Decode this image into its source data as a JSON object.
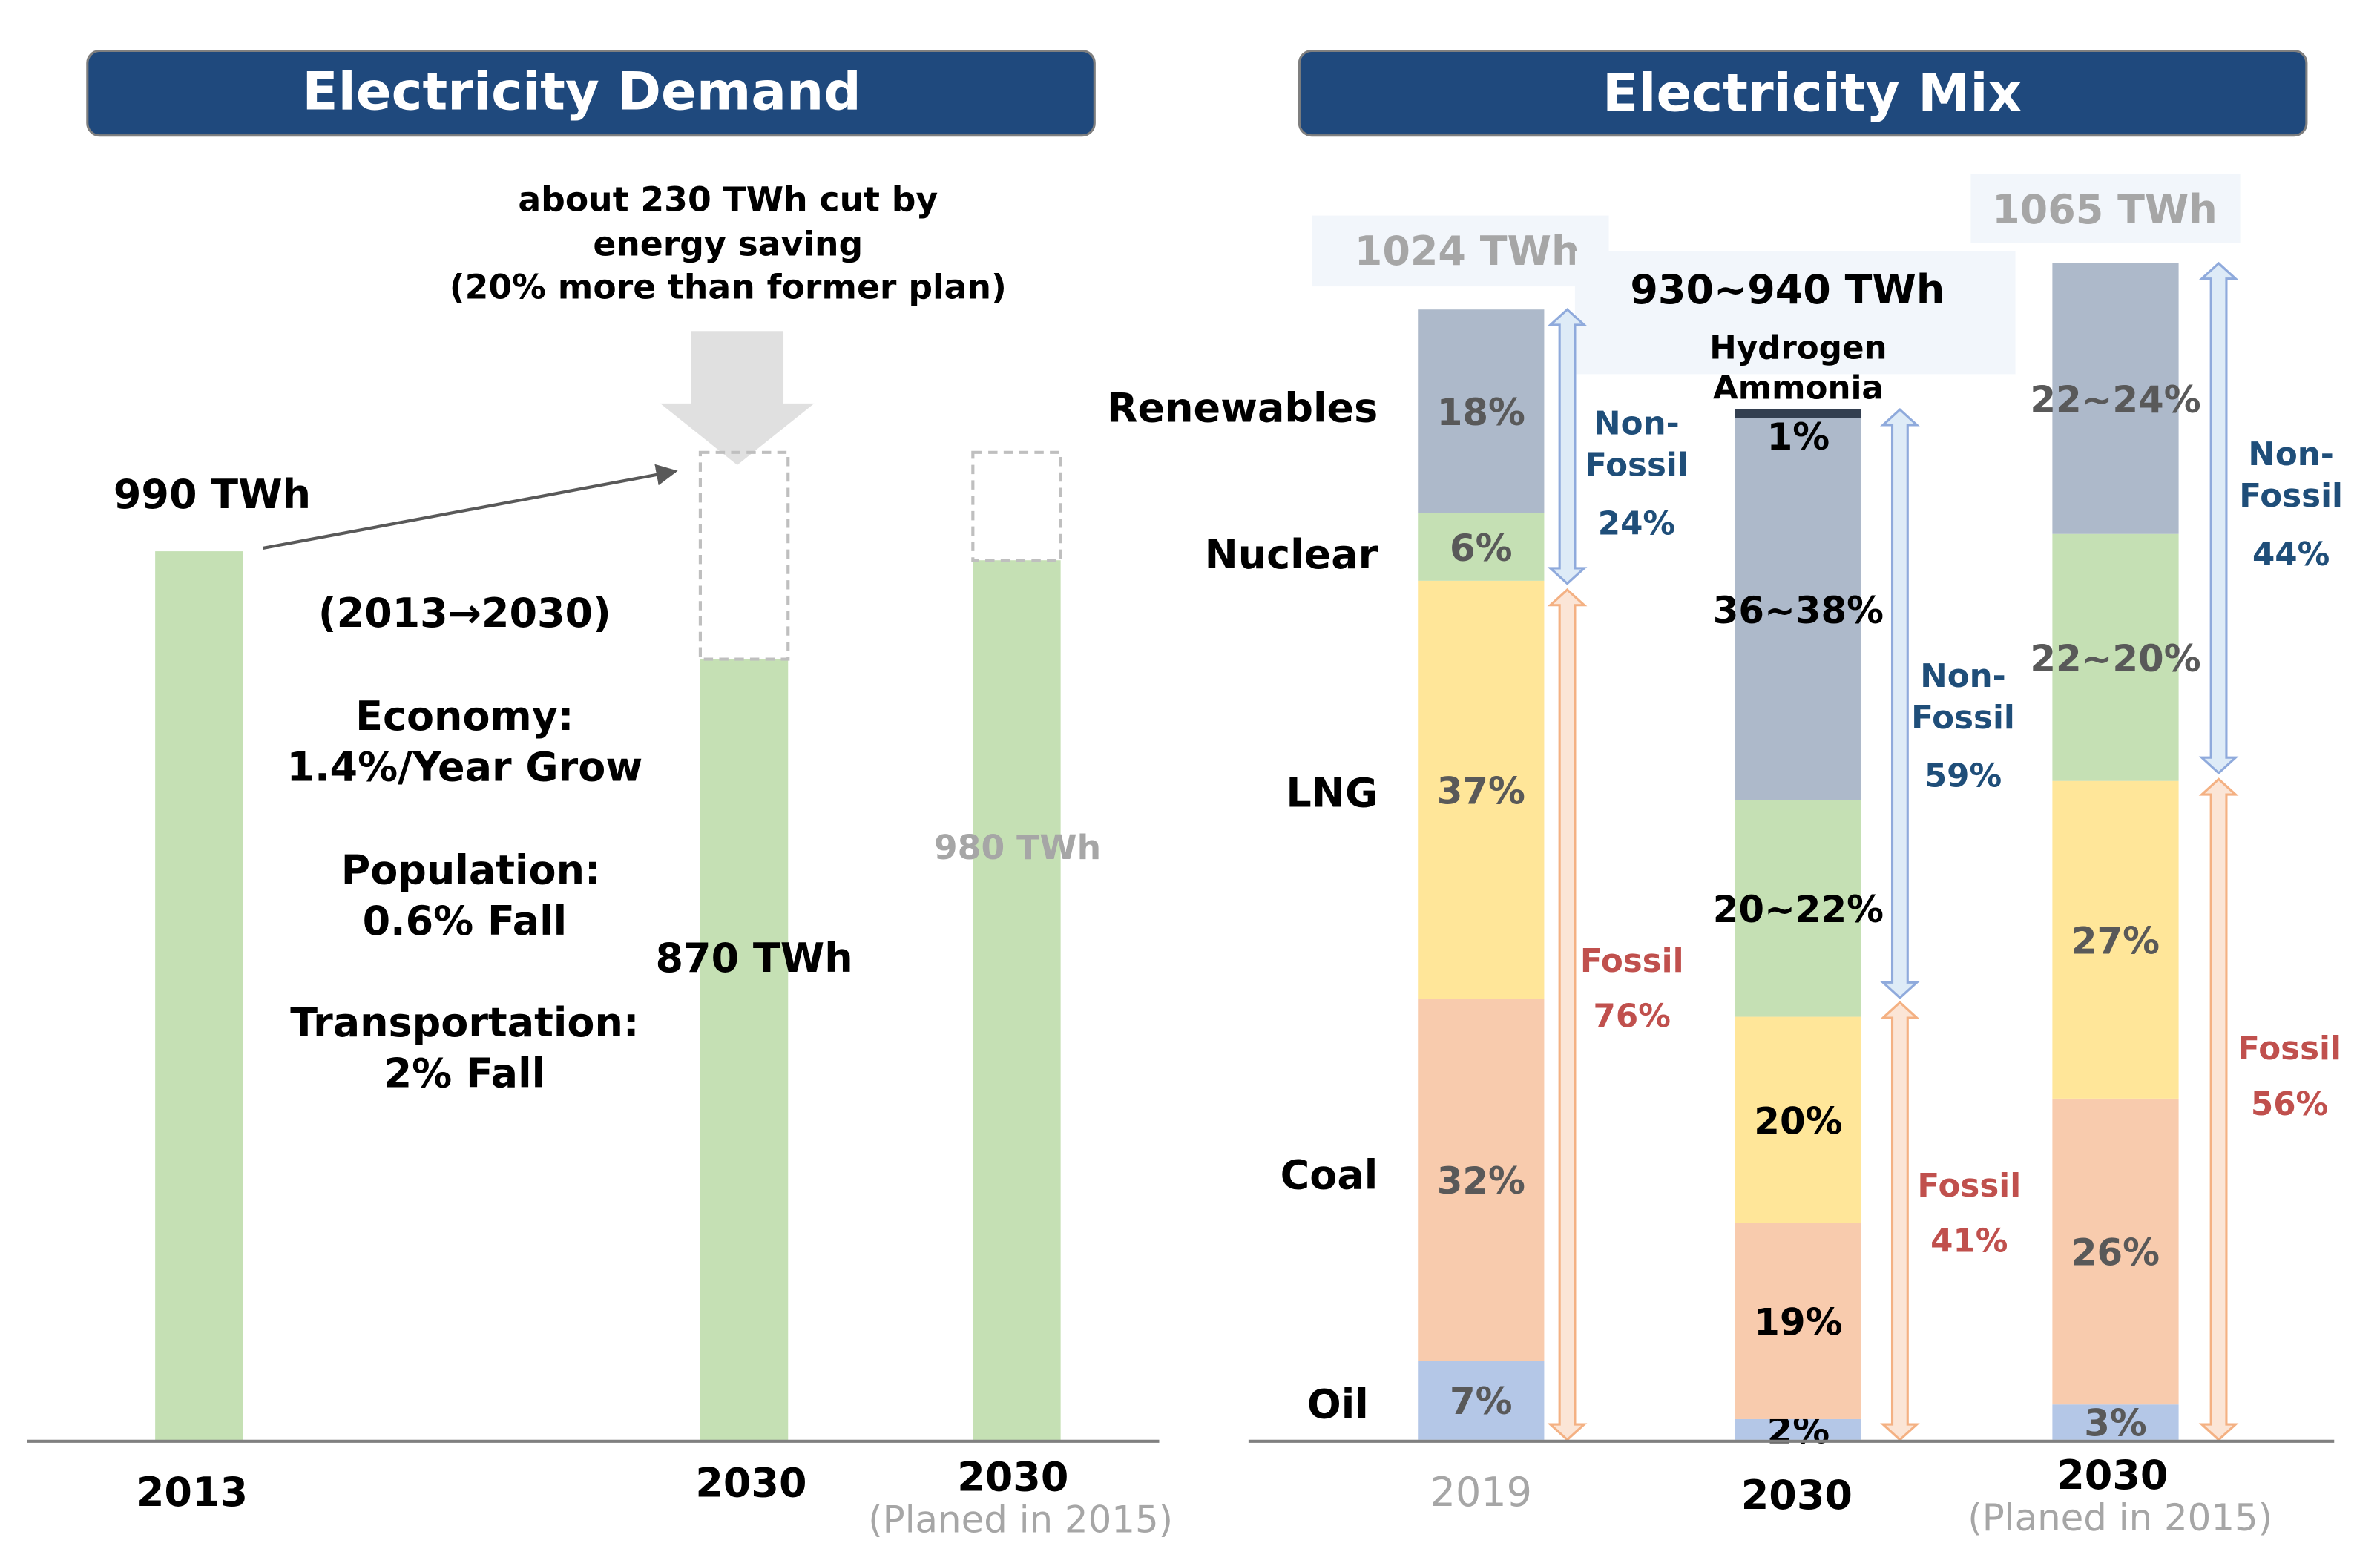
{
  "colors": {
    "header_bg": "#1F497D",
    "header_text": "#FFFFFF",
    "demand_bar": "#C5E0B4",
    "renewables": "#ADB9CA",
    "nuclear": "#C5E0B4",
    "lng": "#FFE699",
    "coal": "#F8CBAD",
    "oil": "#B4C7E7",
    "hydrogen": "#333F50",
    "nonfossil_text": "#1F4E79",
    "fossil_text": "#C0504D",
    "muted": "#A6A6A6",
    "axis": "#808080"
  },
  "chart_data": [
    {
      "type": "bar",
      "title": "Electricity Demand",
      "categories": [
        "2013",
        "2030",
        "2030"
      ],
      "category_notes": [
        "",
        "",
        "(Planed in 2015)"
      ],
      "values": [
        990,
        870,
        980
      ],
      "value_labels": [
        "990 TWh",
        "870 TWh",
        "980 TWh"
      ],
      "dashed_extension_top": [
        null,
        1100,
        1100
      ],
      "ylim": [
        0,
        1300
      ],
      "annotations": {
        "cut_text": [
          "about 230 TWh cut by",
          "energy saving",
          "(20% more than former plan)"
        ],
        "period": "(2013→2030)",
        "factors": [
          [
            "Economy:",
            "1.4%/Year Grow"
          ],
          [
            "Population:",
            "0.6% Fall"
          ],
          [
            "Transportation:",
            "2% Fall"
          ]
        ]
      }
    },
    {
      "type": "bar",
      "stacked": true,
      "title": "Electricity Mix",
      "categories": [
        "2019",
        "2030",
        "2030"
      ],
      "category_notes": [
        "",
        "",
        "(Planed in 2015)"
      ],
      "totals": [
        "1024 TWh",
        "930~940 TWh",
        "1065 TWh"
      ],
      "series_names": [
        "Oil",
        "Coal",
        "LNG",
        "Nuclear",
        "Renewables"
      ],
      "extra_series": {
        "name_lines": [
          "Hydrogen",
          "Ammonia"
        ],
        "value_2030": 1,
        "label": "1%"
      },
      "segments": [
        [
          {
            "series": "Oil",
            "value": 7,
            "label": "7%"
          },
          {
            "series": "Coal",
            "value": 32,
            "label": "32%"
          },
          {
            "series": "LNG",
            "value": 37,
            "label": "37%"
          },
          {
            "series": "Nuclear",
            "value": 6,
            "label": "6%"
          },
          {
            "series": "Renewables",
            "value": 18,
            "label": "18%"
          }
        ],
        [
          {
            "series": "Oil",
            "value": 2,
            "label": "2%"
          },
          {
            "series": "Coal",
            "value": 19,
            "label": "19%"
          },
          {
            "series": "LNG",
            "value": 20,
            "label": "20%"
          },
          {
            "series": "Nuclear",
            "value": 21,
            "label": "20~22%"
          },
          {
            "series": "Renewables",
            "value": 37,
            "label": "36~38%"
          },
          {
            "series": "Hydrogen Ammonia",
            "value": 1,
            "label": "1%"
          }
        ],
        [
          {
            "series": "Oil",
            "value": 3,
            "label": "3%"
          },
          {
            "series": "Coal",
            "value": 26,
            "label": "26%"
          },
          {
            "series": "LNG",
            "value": 27,
            "label": "27%"
          },
          {
            "series": "Nuclear",
            "value": 21,
            "label": "22~20%"
          },
          {
            "series": "Renewables",
            "value": 23,
            "label": "22~24%"
          }
        ]
      ],
      "groups": [
        {
          "non_fossil": [
            "Non-",
            "Fossil",
            "24%"
          ],
          "fossil": [
            "Fossil",
            "76%"
          ]
        },
        {
          "non_fossil": [
            "Non-",
            "Fossil",
            "59%"
          ],
          "fossil": [
            "Fossil",
            "41%"
          ]
        },
        {
          "non_fossil": [
            "Non-",
            "Fossil",
            "44%"
          ],
          "fossil": [
            "Fossil",
            "56%"
          ]
        }
      ]
    }
  ]
}
